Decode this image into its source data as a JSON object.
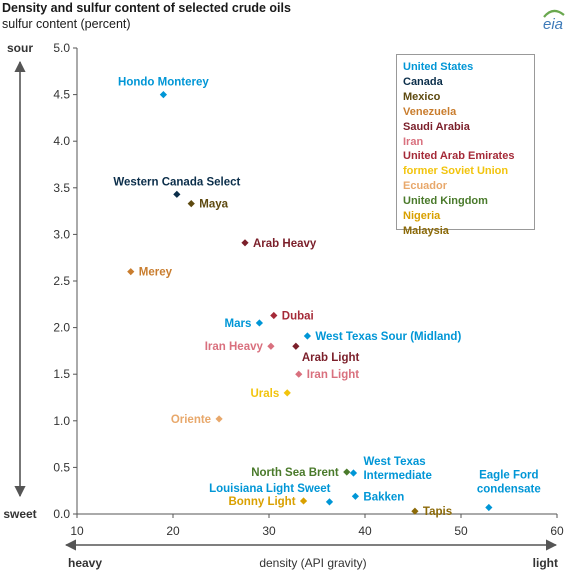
{
  "header": {
    "title": "Density and sulfur content of selected crude oils",
    "subtitle": "sulfur content (percent)",
    "logo_text": "eia"
  },
  "colors": {
    "axis": "#555555",
    "tick_text": "#333333",
    "logo_green": "#6aa84f",
    "logo_blue": "#3d7ab8"
  },
  "chart_data": {
    "type": "scatter",
    "title": "Density and sulfur content of selected crude oils",
    "ylabel": "sulfur content (percent)",
    "xlabel": "density (API gravity)",
    "xlim": [
      10,
      60
    ],
    "ylim": [
      0,
      5
    ],
    "xticks": [
      "10",
      "20",
      "30",
      "40",
      "50",
      "60"
    ],
    "yticks": [
      "0.0",
      "0.5",
      "1.0",
      "1.5",
      "2.0",
      "2.5",
      "3.0",
      "3.5",
      "4.0",
      "4.5",
      "5.0"
    ],
    "y_arrow_top": "sour",
    "y_arrow_bottom": "sweet",
    "x_arrow_left": "heavy",
    "x_arrow_right": "light",
    "grid": false,
    "legend_position": "top-right",
    "legend": [
      {
        "name": "United States",
        "color": "#0096d6"
      },
      {
        "name": "Canada",
        "color": "#0b2e4a"
      },
      {
        "name": "Mexico",
        "color": "#5e4a10"
      },
      {
        "name": "Venezuela",
        "color": "#c97d2e"
      },
      {
        "name": "Saudi Arabia",
        "color": "#7b1f2a"
      },
      {
        "name": "Iran",
        "color": "#d9707e"
      },
      {
        "name": "United Arab Emirates",
        "color": "#a52a38"
      },
      {
        "name": "former Soviet Union",
        "color": "#f2c40d"
      },
      {
        "name": "Ecuador",
        "color": "#e8a86b"
      },
      {
        "name": "United Kingdom",
        "color": "#4a7a2b"
      },
      {
        "name": "Nigeria",
        "color": "#d9a000"
      },
      {
        "name": "Malaysia",
        "color": "#8c6a08"
      }
    ],
    "points": [
      {
        "label": "Hondo Monterey",
        "x": 19.0,
        "y": 4.5,
        "group": "United States",
        "anchor": "above"
      },
      {
        "label": "Western Canada Select",
        "x": 20.4,
        "y": 3.43,
        "group": "Canada",
        "anchor": "above"
      },
      {
        "label": "Maya",
        "x": 21.9,
        "y": 3.33,
        "group": "Mexico",
        "anchor": "right"
      },
      {
        "label": "Arab Heavy",
        "x": 27.5,
        "y": 2.91,
        "group": "Saudi Arabia",
        "anchor": "right"
      },
      {
        "label": "Merey",
        "x": 15.6,
        "y": 2.6,
        "group": "Venezuela",
        "anchor": "right"
      },
      {
        "label": "Dubai",
        "x": 30.5,
        "y": 2.13,
        "group": "United Arab Emirates",
        "anchor": "right"
      },
      {
        "label": "Mars",
        "x": 29.0,
        "y": 2.05,
        "group": "United States",
        "anchor": "left"
      },
      {
        "label": "West Texas Sour (Midland)",
        "x": 34.0,
        "y": 1.91,
        "group": "United States",
        "anchor": "right"
      },
      {
        "label": "Iran Heavy",
        "x": 30.2,
        "y": 1.8,
        "group": "Iran",
        "anchor": "left"
      },
      {
        "label": "Arab Light",
        "x": 32.8,
        "y": 1.8,
        "group": "Saudi Arabia",
        "anchor": "below-right"
      },
      {
        "label": "Iran Light",
        "x": 33.1,
        "y": 1.5,
        "group": "Iran",
        "anchor": "right"
      },
      {
        "label": "Urals",
        "x": 31.9,
        "y": 1.3,
        "group": "former Soviet Union",
        "anchor": "left"
      },
      {
        "label": "Oriente",
        "x": 24.8,
        "y": 1.02,
        "group": "Ecuador",
        "anchor": "left"
      },
      {
        "label": "North Sea Brent",
        "x": 38.1,
        "y": 0.45,
        "group": "United Kingdom",
        "anchor": "left"
      },
      {
        "label": "West Texas Intermediate",
        "x": 38.8,
        "y": 0.44,
        "group": "United States",
        "anchor": "custom-wti"
      },
      {
        "label": "Louisiana Light Sweet",
        "x": 36.3,
        "y": 0.13,
        "group": "United States",
        "anchor": "custom-lls"
      },
      {
        "label": "Bonny Light",
        "x": 33.6,
        "y": 0.14,
        "group": "Nigeria",
        "anchor": "left"
      },
      {
        "label": "Bakken",
        "x": 39.0,
        "y": 0.19,
        "group": "United States",
        "anchor": "right"
      },
      {
        "label": "Tapis",
        "x": 45.2,
        "y": 0.03,
        "group": "Malaysia",
        "anchor": "right"
      },
      {
        "label": "Eagle Ford condensate",
        "x": 52.9,
        "y": 0.07,
        "group": "United States",
        "anchor": "custom-ef"
      }
    ]
  }
}
